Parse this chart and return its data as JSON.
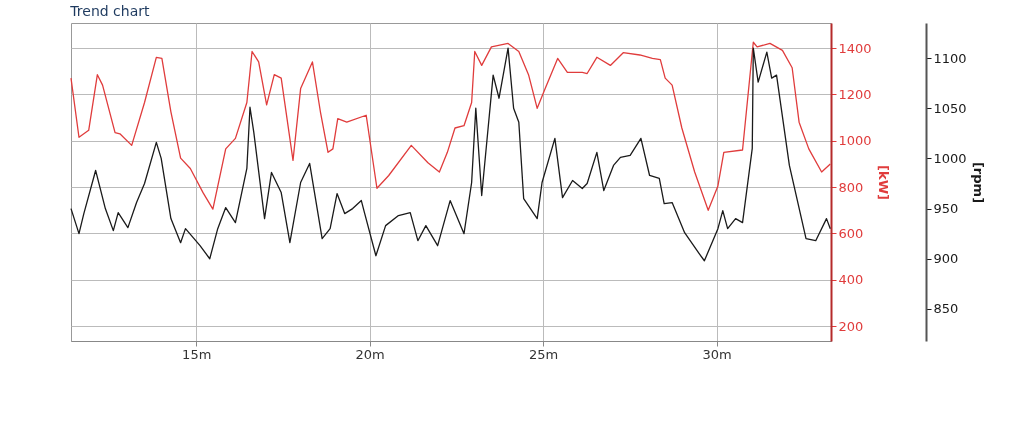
{
  "chart_data": {
    "type": "line",
    "title": "Trend chart",
    "y2label": "[kW]",
    "y3label": "[rpm]",
    "xlim": [
      11.39,
      33.3
    ],
    "xticks": [
      {
        "value": 15,
        "label": "15m"
      },
      {
        "value": 20,
        "label": "20m"
      },
      {
        "value": 25,
        "label": "25m"
      },
      {
        "value": 30,
        "label": "30m"
      }
    ],
    "y2lim": [
      136,
      1508
    ],
    "y2ticks": [
      200,
      400,
      600,
      800,
      1000,
      1200,
      1400
    ],
    "y3lim": [
      818,
      1135
    ],
    "y3ticks": [
      850,
      900,
      950,
      1000,
      1050,
      1100
    ],
    "grid": true,
    "series": [
      {
        "color": "#e03c3c",
        "axis": "y2",
        "x": [
          11.39,
          11.62,
          11.9,
          12.15,
          12.3,
          12.66,
          12.8,
          13.14,
          13.51,
          13.85,
          14.01,
          14.27,
          14.55,
          14.83,
          15.2,
          15.48,
          15.85,
          16.13,
          16.46,
          16.61,
          16.8,
          17.03,
          17.25,
          17.45,
          17.79,
          18.01,
          18.35,
          18.58,
          18.8,
          18.94,
          19.08,
          19.34,
          19.9,
          20.21,
          20.55,
          21.2,
          21.68,
          22.01,
          22.24,
          22.46,
          22.72,
          22.94,
          23.03,
          23.23,
          23.51,
          23.99,
          24.3,
          24.58,
          24.83,
          25.06,
          25.42,
          25.7,
          26.13,
          26.27,
          26.55,
          26.94,
          27.31,
          27.79,
          28.15,
          28.38,
          28.52,
          28.72,
          29.0,
          29.37,
          29.76,
          30.04,
          30.21,
          30.75,
          31.06,
          31.17,
          31.54,
          31.9,
          32.18,
          32.38,
          32.66,
          33.03,
          33.28
        ],
        "values": [
          1270,
          1015,
          1045,
          1285,
          1240,
          1035,
          1030,
          980,
          1165,
          1360,
          1355,
          1125,
          925,
          880,
          775,
          705,
          965,
          1010,
          1165,
          1385,
          1340,
          1155,
          1285,
          1270,
          915,
          1225,
          1340,
          1125,
          950,
          965,
          1095,
          1080,
          1110,
          795,
          850,
          980,
          905,
          865,
          950,
          1055,
          1065,
          1165,
          1385,
          1325,
          1405,
          1420,
          1385,
          1285,
          1140,
          1225,
          1355,
          1295,
          1295,
          1290,
          1360,
          1325,
          1380,
          1370,
          1355,
          1350,
          1270,
          1240,
          1055,
          865,
          700,
          805,
          950,
          960,
          1425,
          1405,
          1420,
          1390,
          1315,
          1080,
          965,
          865,
          900
        ]
      },
      {
        "color": "#1a1a1a",
        "axis": "y3",
        "x": [
          11.39,
          11.62,
          11.76,
          12.1,
          12.38,
          12.61,
          12.75,
          13.03,
          13.28,
          13.51,
          13.85,
          13.99,
          14.27,
          14.55,
          14.69,
          15.11,
          15.39,
          15.62,
          15.85,
          16.13,
          16.46,
          16.55,
          16.66,
          16.97,
          17.17,
          17.45,
          17.7,
          18.01,
          18.27,
          18.63,
          18.86,
          19.06,
          19.28,
          19.51,
          19.76,
          19.85,
          20.18,
          20.46,
          20.83,
          21.17,
          21.39,
          21.62,
          21.96,
          22.32,
          22.72,
          22.94,
          23.06,
          23.23,
          23.45,
          23.56,
          23.73,
          23.99,
          24.15,
          24.3,
          24.44,
          24.83,
          24.97,
          25.34,
          25.56,
          25.85,
          26.13,
          26.27,
          26.55,
          26.75,
          27.03,
          27.23,
          27.51,
          27.82,
          28.07,
          28.35,
          28.49,
          28.72,
          29.08,
          29.48,
          29.65,
          30.04,
          30.18,
          30.32,
          30.55,
          30.75,
          31.03,
          31.06,
          31.2,
          31.45,
          31.59,
          31.73,
          32.1,
          32.58,
          32.86,
          33.17,
          33.28
        ],
        "values": [
          950,
          925,
          945,
          988,
          950,
          928,
          946,
          931,
          956,
          975,
          1016,
          1000,
          940,
          916,
          930,
          913,
          900,
          930,
          951,
          936,
          990,
          1051,
          1026,
          940,
          986,
          966,
          916,
          976,
          995,
          920,
          930,
          965,
          945,
          950,
          958,
          946,
          903,
          933,
          943,
          946,
          918,
          933,
          913,
          958,
          925,
          976,
          1050,
          963,
          1043,
          1083,
          1060,
          1110,
          1050,
          1036,
          960,
          940,
          976,
          1020,
          961,
          978,
          970,
          975,
          1006,
          968,
          993,
          1001,
          1003,
          1020,
          983,
          980,
          955,
          956,
          926,
          906,
          898,
          930,
          948,
          930,
          940,
          936,
          1010,
          1110,
          1076,
          1106,
          1080,
          1083,
          993,
          920,
          918,
          940,
          930
        ]
      }
    ]
  }
}
